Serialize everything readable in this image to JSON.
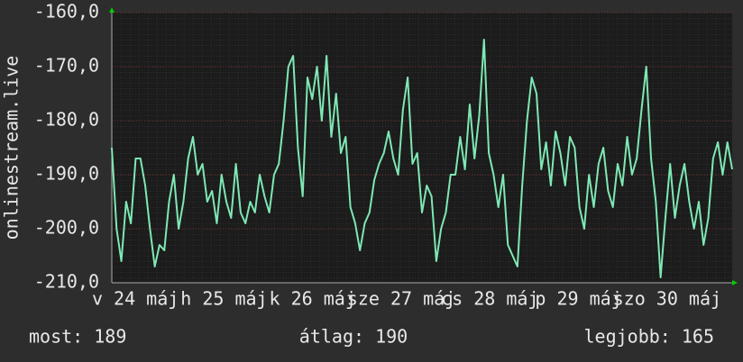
{
  "chart_data": {
    "type": "line",
    "y_label": "onlinestream.live",
    "color": "#7ee8b4",
    "grid": true,
    "ylim": [
      -210,
      -160
    ],
    "yticks": [
      {
        "value": -160,
        "label": "-160,0"
      },
      {
        "value": -170,
        "label": "-170,0"
      },
      {
        "value": -180,
        "label": "-180,0"
      },
      {
        "value": -190,
        "label": "-190,0"
      },
      {
        "value": -200,
        "label": "-200,0"
      },
      {
        "value": -210,
        "label": "-210,0"
      }
    ],
    "xtick_labels": [
      "v 24 máj",
      "h 25 máj",
      "k 26 máj",
      "sze 27 máj",
      "cs 28 máj",
      "p 29 máj",
      "szo 30 máj"
    ],
    "values": [
      -185,
      -200,
      -206,
      -195,
      -199,
      -187,
      -187,
      -192,
      -200,
      -207,
      -203,
      -204,
      -195,
      -190,
      -200,
      -195,
      -187,
      -183,
      -190,
      -188,
      -195,
      -193,
      -199,
      -190,
      -195,
      -198,
      -188,
      -197,
      -199,
      -195,
      -197,
      -190,
      -194,
      -197,
      -190,
      -188,
      -180,
      -170,
      -168,
      -185,
      -194,
      -172,
      -176,
      -170,
      -180,
      -168,
      -183,
      -175,
      -186,
      -183,
      -196,
      -199,
      -204,
      -199,
      -197,
      -191,
      -188,
      -186,
      -182,
      -187,
      -190,
      -178,
      -172,
      -188,
      -186,
      -197,
      -192,
      -194,
      -206,
      -200,
      -197,
      -190,
      -190,
      -183,
      -189,
      -177,
      -187,
      -179,
      -165,
      -186,
      -190,
      -196,
      -190,
      -203,
      -205,
      -207,
      -192,
      -180,
      -172,
      -175,
      -189,
      -184,
      -192,
      -182,
      -186,
      -192,
      -183,
      -185,
      -196,
      -200,
      -190,
      -196,
      -188,
      -185,
      -193,
      -196,
      -188,
      -192,
      -183,
      -190,
      -187,
      -178,
      -170,
      -187,
      -195,
      -209,
      -198,
      -188,
      -198,
      -192,
      -188,
      -195,
      -200,
      -195,
      -203,
      -198,
      -187,
      -184,
      -190,
      -184,
      -189
    ],
    "footer": {
      "current": "most: 189",
      "average": "átlag: 190",
      "best": "legjobb: 165"
    }
  }
}
